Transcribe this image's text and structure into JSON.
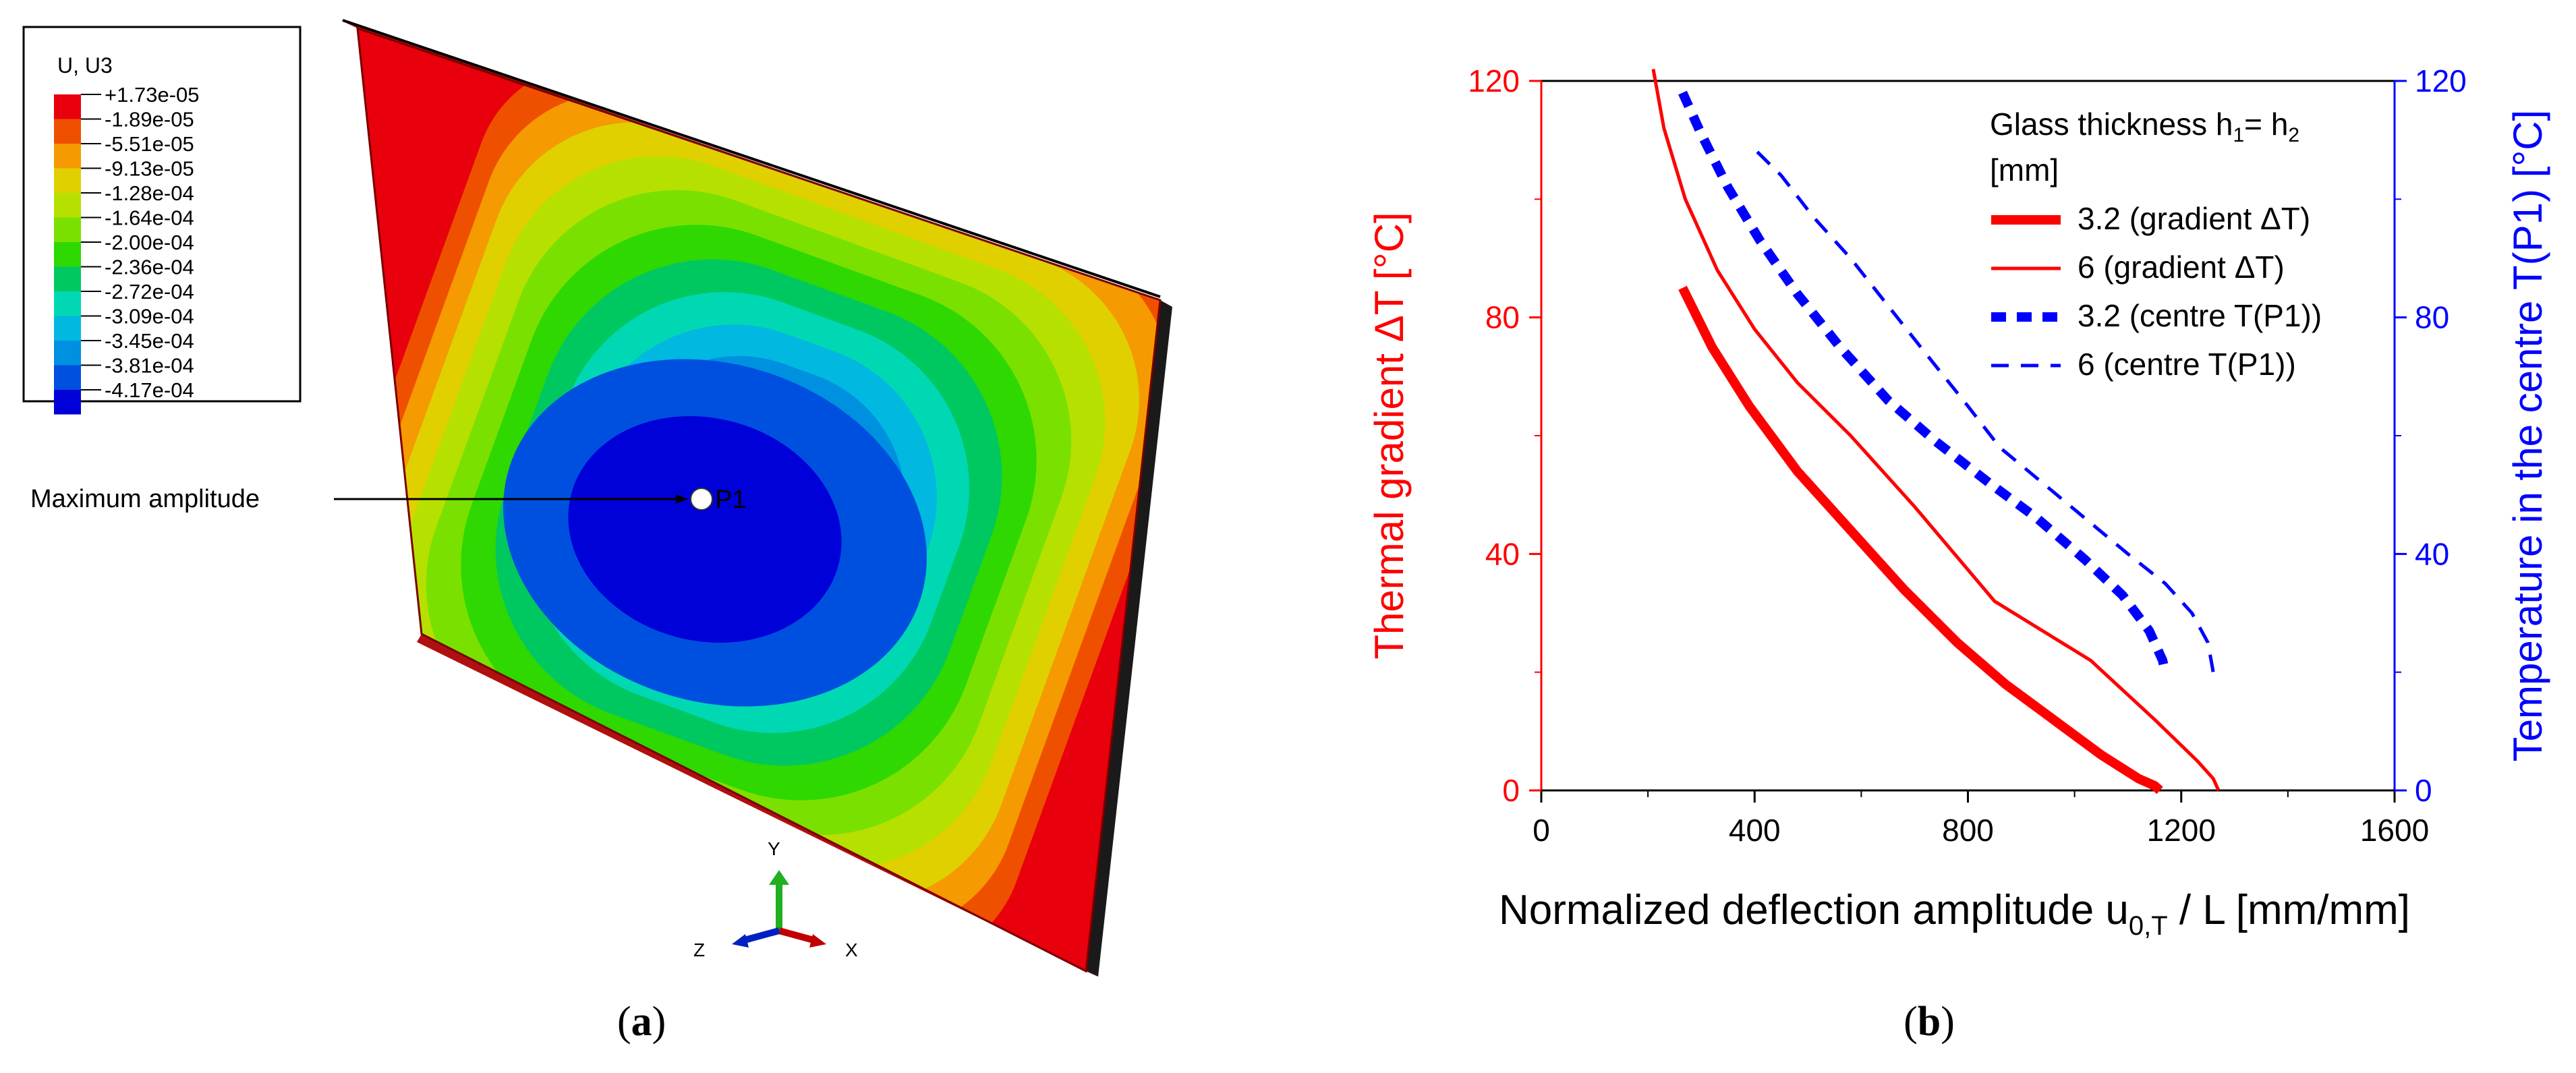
{
  "panel_a": {
    "legend_title": "U, U3",
    "legend_values": [
      "+1.73e-05",
      "-1.89e-05",
      "-5.51e-05",
      "-9.13e-05",
      "-1.28e-04",
      "-1.64e-04",
      "-2.00e-04",
      "-2.36e-04",
      "-2.72e-04",
      "-3.09e-04",
      "-3.45e-04",
      "-3.81e-04",
      "-4.17e-04"
    ],
    "legend_colors": [
      "#e8000c",
      "#ef5000",
      "#f59a00",
      "#e0d000",
      "#b6e000",
      "#7ae000",
      "#2ed800",
      "#00c860",
      "#00d8b4",
      "#00b8e0",
      "#0090e0",
      "#0050e0",
      "#0000d8"
    ],
    "annotation": "Maximum amplitude",
    "point_label": "P1",
    "axes": {
      "y": "Y",
      "z": "Z",
      "x": "X"
    },
    "caption_open": "(",
    "caption_letter": "a",
    "caption_close": ")"
  },
  "panel_b": {
    "caption_open": "(",
    "caption_letter": "b",
    "caption_close": ")"
  },
  "chart_data": {
    "type": "line",
    "xlabel": "Normalized deflection amplitude u",
    "xlabel_sub": "0,T",
    "xlabel_tail": " / L  [mm/mm]",
    "ylabel_left": "Thermal gradient ΔT  [°C]",
    "ylabel_right": "Temperature in the centre T(P1)  [°C]",
    "xlim": [
      0,
      1600
    ],
    "ylim": [
      0,
      120
    ],
    "x_ticks": [
      0,
      400,
      800,
      1200,
      1600
    ],
    "y_ticks": [
      0,
      40,
      80,
      120
    ],
    "y_right_ticks": [
      0,
      40,
      80,
      120
    ],
    "left_axis_color": "#ff0000",
    "right_axis_color": "#0000ff",
    "legend_title_parts": [
      "Glass thickness h",
      "1",
      "= h",
      "2"
    ],
    "legend_title_line2": "[mm]",
    "series": [
      {
        "name": "3.2 (gradient ΔT)",
        "color": "#ff0000",
        "style": "thick-solid",
        "x": [
          265,
          320,
          390,
          480,
          580,
          680,
          780,
          870,
          960,
          1050,
          1120,
          1150,
          1160
        ],
        "y": [
          85,
          75,
          65,
          54,
          44,
          34,
          25,
          18,
          12,
          6,
          2,
          0.8,
          0
        ]
      },
      {
        "name": "6 (gradient ΔT)",
        "color": "#ff0000",
        "style": "thin-solid",
        "x": [
          210,
          230,
          270,
          330,
          400,
          480,
          580,
          700,
          850,
          1030,
          1150,
          1230,
          1260,
          1270
        ],
        "y": [
          122,
          112,
          100,
          88,
          78,
          69,
          60,
          48,
          32,
          22,
          12,
          5,
          2,
          0
        ]
      },
      {
        "name": "3.2 (centre T(P1))",
        "color": "#0000ff",
        "style": "thick-dashed",
        "x": [
          265,
          300,
          350,
          410,
          480,
          560,
          650,
          740,
          840,
          930,
          1020,
          1090,
          1140,
          1165,
          1170
        ],
        "y": [
          118,
          111,
          102,
          93,
          84,
          75,
          66,
          59,
          52,
          46,
          39,
          33,
          27,
          22,
          20
        ]
      },
      {
        "name": "6 (centre T(P1))",
        "color": "#0000ff",
        "style": "thin-dashed",
        "x": [
          405,
          450,
          510,
          580,
          650,
          720,
          800,
          860,
          940,
          1020,
          1100,
          1170,
          1220,
          1250,
          1260
        ],
        "y": [
          108,
          104,
          97,
          90,
          82,
          74,
          65,
          58,
          52,
          46,
          40,
          35,
          30,
          25,
          20
        ]
      }
    ]
  }
}
